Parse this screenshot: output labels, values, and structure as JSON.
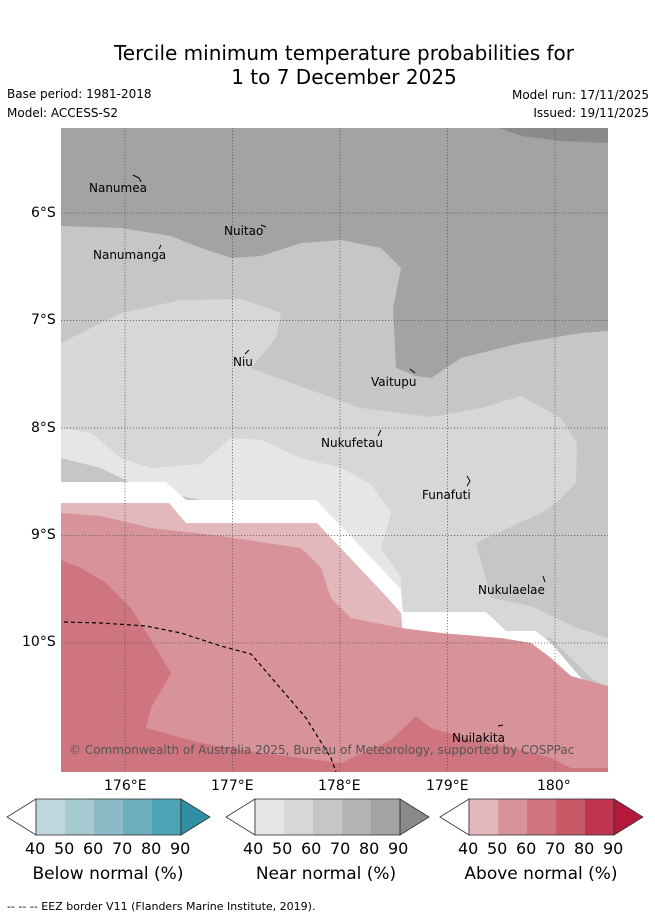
{
  "title_line1": "Tercile minimum temperature probabilities for",
  "title_line2": "1 to 7 December 2025",
  "meta": {
    "base_period": "Base period: 1981-2018",
    "model": "Model: ACCESS-S2",
    "model_run": "Model run: 17/11/2025",
    "issued": "Issued: 19/11/2025"
  },
  "lat_labels": [
    "6°S",
    "7°S",
    "8°S",
    "9°S",
    "10°S"
  ],
  "lon_labels": [
    "176°E",
    "177°E",
    "178°E",
    "179°E",
    "180°"
  ],
  "places": {
    "nanumea": "Nanumea",
    "nuitao": "Nuitao",
    "nanumanga": "Nanumanga",
    "niu": "Niu",
    "vaitupu": "Vaitupu",
    "nukufetau": "Nukufetau",
    "funafuti": "Funafuti",
    "nukulaelae": "Nukulaelae",
    "nuilakita": "Nuilakita"
  },
  "copyright": "© Commonwealth of Australia 2025, Bureau of Meteorology, supported by COSPPac",
  "legends": [
    {
      "label": "Below normal (%)",
      "ticks": [
        "40",
        "50",
        "60",
        "70",
        "80",
        "90"
      ],
      "colors": [
        "#ffffff",
        "#bfd6dd",
        "#a7cad0",
        "#8cbac6",
        "#6daebd",
        "#4ba3b5",
        "#2e8fa5"
      ]
    },
    {
      "label": "Near normal (%)",
      "ticks": [
        "40",
        "50",
        "60",
        "70",
        "80",
        "90"
      ],
      "colors": [
        "#ffffff",
        "#e6e6e6",
        "#d7d7d7",
        "#c6c6c6",
        "#b4b4b4",
        "#a3a3a3",
        "#8a8a8a"
      ]
    },
    {
      "label": "Above normal (%)",
      "ticks": [
        "40",
        "50",
        "60",
        "70",
        "80",
        "90"
      ],
      "colors": [
        "#ffffff",
        "#e3b8bd",
        "#d89299",
        "#cf757f",
        "#c85a68",
        "#bf3550",
        "#b4183a"
      ]
    }
  ],
  "footer": "--  --  -- EEZ border V11 (Flanders Marine Institute, 2019)."
}
